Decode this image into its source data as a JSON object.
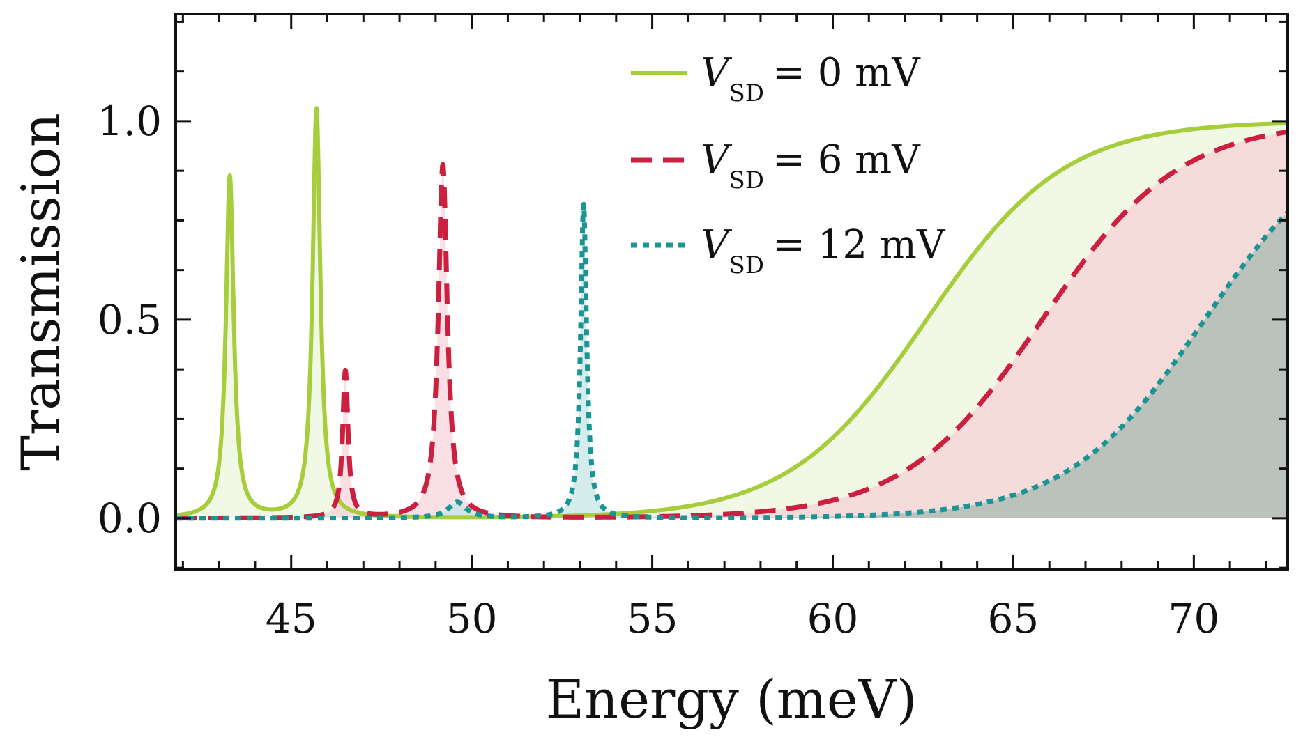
{
  "chart_data": {
    "type": "line",
    "title": "",
    "xlabel": "Energy (meV)",
    "ylabel": "Transmission",
    "xlim": [
      41.8,
      72.6
    ],
    "ylim": [
      -0.13,
      1.27
    ],
    "xticks": [
      45,
      50,
      55,
      60,
      65,
      70
    ],
    "xtick_labels": [
      "45",
      "50",
      "55",
      "60",
      "65",
      "70"
    ],
    "yticks": [
      0.0,
      0.5,
      1.0
    ],
    "ytick_labels": [
      "0.0",
      "0.5",
      "1.0"
    ],
    "grid": false,
    "legend_position": "top-center",
    "series": [
      {
        "name": "V_SD = 0 mV",
        "legend_var": "V",
        "legend_sub": "SD",
        "legend_rest": "= 0 mV",
        "style": "solid",
        "color": "#a6cd3c",
        "fill": "#e9f3d5",
        "peaks": [
          [
            43.3,
            0.86,
            0.13
          ],
          [
            45.7,
            1.03,
            0.13
          ]
        ],
        "step": {
          "height": 1.0,
          "center": 62.6,
          "width": 1.9
        },
        "x": [
          42.0,
          42.5,
          43.0,
          43.3,
          43.6,
          44.0,
          44.5,
          45.0,
          45.5,
          45.7,
          46.0,
          46.5,
          47.0,
          48.0,
          50.0,
          52.0,
          54.0,
          56.0,
          58.0,
          60.0,
          61.0,
          62.0,
          63.0,
          64.0,
          65.0,
          66.0,
          67.0,
          68.0,
          70.0,
          72.5
        ],
        "y": [
          0.02,
          0.03,
          0.13,
          0.86,
          0.13,
          0.04,
          0.02,
          0.04,
          0.23,
          1.03,
          0.18,
          0.04,
          0.02,
          0.01,
          0.01,
          0.01,
          0.01,
          0.03,
          0.06,
          0.15,
          0.25,
          0.4,
          0.58,
          0.75,
          0.87,
          0.94,
          0.97,
          0.99,
          1.0,
          1.0
        ]
      },
      {
        "name": "V_SD = 6 mV",
        "legend_var": "V",
        "legend_sub": "SD",
        "legend_rest": "= 6 mV",
        "style": "dashed",
        "color": "#cc2040",
        "fill": "#f6c9d2",
        "peaks": [
          [
            46.5,
            0.37,
            0.09
          ],
          [
            49.2,
            0.89,
            0.15
          ]
        ],
        "step": {
          "height": 1.0,
          "center": 65.8,
          "width": 1.9
        },
        "x": [
          42.0,
          46.0,
          46.3,
          46.5,
          46.7,
          47.0,
          48.0,
          48.8,
          49.2,
          49.6,
          50.0,
          51.0,
          53.0,
          55.0,
          57.0,
          59.0,
          61.0,
          63.0,
          64.0,
          65.0,
          66.0,
          67.0,
          68.0,
          69.0,
          70.0,
          71.0,
          72.5
        ],
        "y": [
          0.0,
          0.01,
          0.08,
          0.37,
          0.08,
          0.02,
          0.01,
          0.2,
          0.89,
          0.2,
          0.05,
          0.01,
          0.0,
          0.0,
          0.01,
          0.01,
          0.03,
          0.1,
          0.17,
          0.3,
          0.45,
          0.63,
          0.78,
          0.88,
          0.94,
          0.97,
          0.99
        ]
      },
      {
        "name": "V_SD = 12 mV",
        "legend_var": "V",
        "legend_sub": "SD",
        "legend_rest": "= 12 mV",
        "style": "dotted",
        "color": "#1b9494",
        "fill": "#c5e6e6",
        "peaks": [
          [
            49.6,
            0.04,
            0.3
          ],
          [
            53.1,
            0.79,
            0.1
          ]
        ],
        "step": {
          "height": 1.0,
          "center": 70.3,
          "width": 1.9
        },
        "x": [
          42.0,
          49.0,
          49.6,
          50.5,
          52.0,
          52.8,
          53.1,
          53.4,
          54.0,
          56.0,
          58.0,
          60.0,
          62.0,
          64.0,
          65.0,
          66.0,
          67.0,
          68.0,
          69.0,
          70.0,
          71.0,
          72.5
        ],
        "y": [
          0.0,
          0.0,
          0.04,
          0.01,
          0.01,
          0.08,
          0.79,
          0.08,
          0.01,
          0.0,
          0.0,
          0.01,
          0.02,
          0.04,
          0.06,
          0.09,
          0.14,
          0.23,
          0.35,
          0.5,
          0.66,
          0.87
        ]
      }
    ]
  }
}
